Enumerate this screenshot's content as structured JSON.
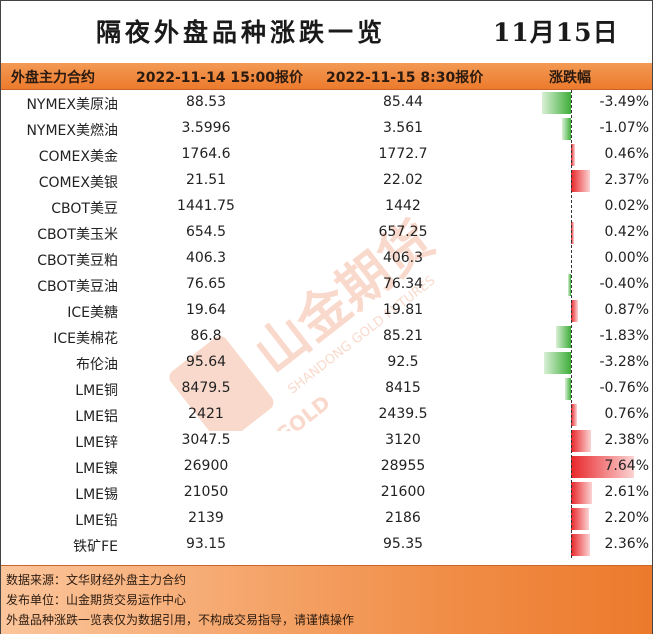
{
  "title": "隔夜外盘品种涨跌一览",
  "date": "11月15日",
  "header": {
    "col_name": "外盘主力合约",
    "col_v1": "2022-11-14 15:00报价",
    "col_v2": "2022-11-15 8:30报价",
    "col_pct": "涨跌幅"
  },
  "rows": [
    {
      "name": "NYMEX美原油",
      "v1": "88.53",
      "v2": "85.44",
      "pct": "-3.49%"
    },
    {
      "name": "NYMEX美燃油",
      "v1": "3.5996",
      "v2": "3.561",
      "pct": "-1.07%"
    },
    {
      "name": "COMEX美金",
      "v1": "1764.6",
      "v2": "1772.7",
      "pct": "0.46%"
    },
    {
      "name": "COMEX美银",
      "v1": "21.51",
      "v2": "22.02",
      "pct": "2.37%"
    },
    {
      "name": "CBOT美豆",
      "v1": "1441.75",
      "v2": "1442",
      "pct": "0.02%"
    },
    {
      "name": "CBOT美玉米",
      "v1": "654.5",
      "v2": "657.25",
      "pct": "0.42%"
    },
    {
      "name": "CBOT美豆粕",
      "v1": "406.3",
      "v2": "406.3",
      "pct": "0.00%"
    },
    {
      "name": "CBOT美豆油",
      "v1": "76.65",
      "v2": "76.34",
      "pct": "-0.40%"
    },
    {
      "name": "ICE美糖",
      "v1": "19.64",
      "v2": "19.81",
      "pct": "0.87%"
    },
    {
      "name": "ICE美棉花",
      "v1": "86.8",
      "v2": "85.21",
      "pct": "-1.83%"
    },
    {
      "name": "布伦油",
      "v1": "95.64",
      "v2": "92.5",
      "pct": "-3.28%"
    },
    {
      "name": "LME铜",
      "v1": "8479.5",
      "v2": "8415",
      "pct": "-0.76%"
    },
    {
      "name": "LME铝",
      "v1": "2421",
      "v2": "2439.5",
      "pct": "0.76%"
    },
    {
      "name": "LME锌",
      "v1": "3047.5",
      "v2": "3120",
      "pct": "2.38%"
    },
    {
      "name": "LME镍",
      "v1": "26900",
      "v2": "28955",
      "pct": "7.64%"
    },
    {
      "name": "LME锡",
      "v1": "21050",
      "v2": "21600",
      "pct": "2.61%"
    },
    {
      "name": "LME铅",
      "v1": "2139",
      "v2": "2186",
      "pct": "2.20%"
    },
    {
      "name": "铁矿FE",
      "v1": "93.15",
      "v2": "95.35",
      "pct": "2.36%"
    }
  ],
  "bar_values": [
    -3.49,
    -1.07,
    0.46,
    2.37,
    0.02,
    0.42,
    0.0,
    -0.4,
    0.87,
    -1.83,
    -3.28,
    -0.76,
    0.76,
    2.38,
    7.64,
    2.61,
    2.2,
    2.36
  ],
  "colors": {
    "up": "#e8262a",
    "down": "#3fae3a",
    "header": "#ec7a2c"
  },
  "footer": {
    "line1": "数据来源：文华财经外盘主力合约",
    "line2": "发布单位：山金期货交易运作中心",
    "line3": "外盘品种涨跌一览表仅为数据引用，不构成交易指导，请谨慎操作"
  },
  "watermark": {
    "brand": "山金期货",
    "en1": "SHANDONG GOLD FUTURES",
    "en2": "SD-GOLD"
  }
}
